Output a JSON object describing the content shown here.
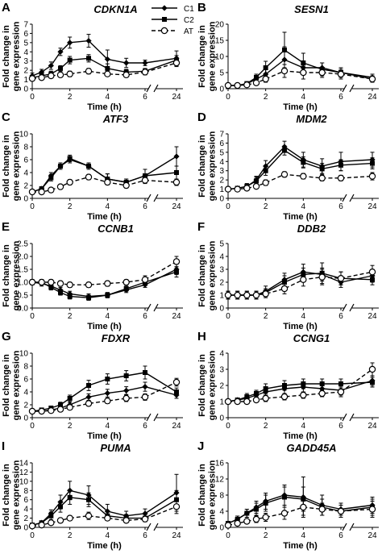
{
  "legend": [
    {
      "name": "C1",
      "marker": "diamond",
      "dash": "solid"
    },
    {
      "name": "C2",
      "marker": "square",
      "dash": "solid"
    },
    {
      "name": "AT",
      "marker": "circle-open",
      "dash": "dashed"
    }
  ],
  "chart_data": [
    {
      "type": "line",
      "panel": "A",
      "title": "CDKN1A",
      "xlabel": "Time (h)",
      "ylabel": "Fold change in gene expression",
      "x": [
        0,
        0.5,
        1,
        1.5,
        2,
        3,
        4,
        5,
        6,
        24
      ],
      "xticks": [
        "0",
        "2",
        "4",
        "6",
        "24"
      ],
      "ylim": [
        0,
        7
      ],
      "yticks": [
        0,
        1,
        2,
        3,
        4,
        5,
        6,
        7
      ],
      "series": [
        {
          "name": "C1",
          "values": [
            1.4,
            1.8,
            2.5,
            4.0,
            5.0,
            5.2,
            3.2,
            2.8,
            2.8,
            3.3
          ],
          "errors": [
            0.3,
            0.3,
            0.4,
            0.4,
            0.6,
            0.7,
            1.0,
            0.5,
            0.3,
            0.8
          ]
        },
        {
          "name": "C2",
          "values": [
            1.2,
            1.4,
            1.6,
            2.2,
            3.1,
            3.3,
            2.2,
            1.8,
            1.9,
            3.1
          ],
          "errors": [
            0.2,
            0.2,
            0.3,
            0.3,
            0.4,
            0.4,
            0.5,
            0.3,
            0.3,
            0.5
          ]
        },
        {
          "name": "AT",
          "values": [
            1.1,
            1.2,
            1.4,
            1.5,
            1.6,
            1.9,
            1.6,
            1.5,
            1.8,
            2.8
          ],
          "errors": [
            0.2,
            0.2,
            0.2,
            0.2,
            0.3,
            0.3,
            0.2,
            0.2,
            0.3,
            0.4
          ]
        }
      ]
    },
    {
      "type": "line",
      "panel": "B",
      "title": "SESN1",
      "xlabel": "Time (h)",
      "ylabel": "Fold change in gene expression",
      "x": [
        0,
        0.5,
        1,
        1.5,
        2,
        3,
        4,
        5,
        6,
        24
      ],
      "xticks": [
        "0",
        "2",
        "4",
        "6",
        "24"
      ],
      "ylim": [
        0,
        20
      ],
      "yticks": [
        0,
        5,
        10,
        15,
        20
      ],
      "series": [
        {
          "name": "C1",
          "values": [
            1.0,
            1.0,
            1.5,
            3.0,
            4.5,
            9.0,
            6.5,
            6.5,
            5.0,
            3.5
          ],
          "errors": [
            0.2,
            0.2,
            0.5,
            1.0,
            1.5,
            4.0,
            2.0,
            1.5,
            1.5,
            1.0
          ]
        },
        {
          "name": "C2",
          "values": [
            1.0,
            1.0,
            1.6,
            3.5,
            6.5,
            12.0,
            8.0,
            6.0,
            5.0,
            3.0
          ],
          "errors": [
            0.2,
            0.2,
            0.5,
            1.0,
            2.0,
            5.5,
            3.0,
            2.0,
            1.5,
            1.0
          ]
        },
        {
          "name": "AT",
          "values": [
            1.0,
            1.0,
            1.2,
            1.8,
            3.0,
            5.5,
            5.0,
            5.0,
            4.5,
            3.0
          ],
          "errors": [
            0.2,
            0.2,
            0.3,
            0.5,
            1.0,
            2.0,
            2.0,
            1.5,
            1.5,
            0.8
          ]
        }
      ]
    },
    {
      "type": "line",
      "panel": "C",
      "title": "ATF3",
      "xlabel": "Time (h)",
      "ylabel": "Fold change in gene expression",
      "x": [
        0,
        0.5,
        1,
        1.5,
        2,
        3,
        4,
        5,
        6,
        24
      ],
      "xticks": [
        "0",
        "2",
        "4",
        "6",
        "24"
      ],
      "ylim": [
        0,
        10
      ],
      "yticks": [
        0,
        2,
        4,
        6,
        8,
        10
      ],
      "series": [
        {
          "name": "C1",
          "values": [
            1.0,
            1.5,
            3.5,
            5.0,
            6.0,
            5.0,
            3.0,
            2.5,
            3.5,
            6.5
          ],
          "errors": [
            0.2,
            0.3,
            0.5,
            0.5,
            0.5,
            0.5,
            0.8,
            0.5,
            1.0,
            1.5
          ]
        },
        {
          "name": "C2",
          "values": [
            1.0,
            1.5,
            3.2,
            5.0,
            6.2,
            5.0,
            3.0,
            2.5,
            3.5,
            4.0
          ],
          "errors": [
            0.2,
            0.3,
            0.5,
            0.5,
            0.5,
            0.5,
            0.8,
            0.5,
            1.0,
            1.0
          ]
        },
        {
          "name": "AT",
          "values": [
            1.0,
            1.0,
            1.3,
            1.8,
            2.5,
            3.3,
            2.5,
            2.0,
            2.8,
            2.5
          ],
          "errors": [
            0.2,
            0.2,
            0.3,
            0.3,
            0.4,
            0.4,
            0.4,
            0.4,
            0.5,
            0.5
          ]
        }
      ]
    },
    {
      "type": "line",
      "panel": "D",
      "title": "MDM2",
      "xlabel": "Time (h)",
      "ylabel": "Fold change in gene expression",
      "x": [
        0,
        0.5,
        1,
        1.5,
        2,
        3,
        4,
        5,
        6,
        24
      ],
      "xticks": [
        "0",
        "2",
        "4",
        "6",
        "24"
      ],
      "ylim": [
        0,
        7
      ],
      "yticks": [
        0,
        1,
        2,
        3,
        4,
        5,
        6,
        7
      ],
      "series": [
        {
          "name": "C1",
          "values": [
            1.0,
            1.1,
            1.3,
            2.0,
            3.5,
            5.6,
            4.2,
            3.5,
            4.0,
            4.2
          ],
          "errors": [
            0.1,
            0.2,
            0.3,
            0.4,
            0.6,
            0.6,
            0.8,
            0.8,
            1.0,
            0.8
          ]
        },
        {
          "name": "C2",
          "values": [
            1.0,
            1.1,
            1.3,
            1.9,
            3.0,
            5.2,
            3.9,
            3.2,
            3.6,
            3.8
          ],
          "errors": [
            0.1,
            0.2,
            0.3,
            0.4,
            0.5,
            0.5,
            0.6,
            0.6,
            0.6,
            0.6
          ]
        },
        {
          "name": "AT",
          "values": [
            1.0,
            1.0,
            1.1,
            1.3,
            1.7,
            2.6,
            2.4,
            2.2,
            2.2,
            2.4
          ],
          "errors": [
            0.1,
            0.1,
            0.2,
            0.2,
            0.3,
            0.3,
            0.3,
            0.3,
            0.3,
            0.4
          ]
        }
      ]
    },
    {
      "type": "line",
      "panel": "E",
      "title": "CCNB1",
      "xlabel": "Time (h)",
      "ylabel": "Fold change in gene expression",
      "x": [
        0,
        0.5,
        1,
        1.5,
        2,
        3,
        4,
        5,
        6,
        24
      ],
      "xticks": [
        "0",
        "2",
        "4",
        "6",
        "24"
      ],
      "ylim": [
        0,
        2.5
      ],
      "yticks": [
        0,
        0.5,
        1.0,
        1.5,
        2.0,
        2.5
      ],
      "series": [
        {
          "name": "C1",
          "values": [
            1.0,
            0.95,
            0.85,
            0.7,
            0.55,
            0.45,
            0.5,
            0.7,
            0.9,
            1.5
          ],
          "errors": [
            0.1,
            0.1,
            0.1,
            0.1,
            0.1,
            0.1,
            0.1,
            0.1,
            0.1,
            0.2
          ]
        },
        {
          "name": "C2",
          "values": [
            1.0,
            1.0,
            0.8,
            0.6,
            0.45,
            0.4,
            0.5,
            0.75,
            1.0,
            1.4
          ],
          "errors": [
            0.1,
            0.1,
            0.1,
            0.1,
            0.1,
            0.1,
            0.1,
            0.1,
            0.1,
            0.2
          ]
        },
        {
          "name": "AT",
          "values": [
            1.0,
            1.0,
            1.0,
            0.95,
            0.9,
            0.9,
            0.95,
            1.0,
            1.1,
            1.8
          ],
          "errors": [
            0.1,
            0.1,
            0.1,
            0.1,
            0.1,
            0.1,
            0.1,
            0.1,
            0.15,
            0.2
          ]
        }
      ]
    },
    {
      "type": "line",
      "panel": "F",
      "title": "DDB2",
      "xlabel": "Time (h)",
      "ylabel": "Fold change in gene expression",
      "x": [
        0,
        0.5,
        1,
        1.5,
        2,
        3,
        4,
        5,
        6,
        24
      ],
      "xticks": [
        "0",
        "2",
        "4",
        "6",
        "24"
      ],
      "ylim": [
        0,
        5
      ],
      "yticks": [
        0,
        1,
        2,
        3,
        4,
        5
      ],
      "series": [
        {
          "name": "C1",
          "values": [
            1.0,
            1.0,
            1.0,
            1.0,
            1.3,
            2.2,
            2.8,
            2.6,
            2.0,
            2.5
          ],
          "errors": [
            0.3,
            0.3,
            0.3,
            0.3,
            0.4,
            0.5,
            0.6,
            0.5,
            0.4,
            0.5
          ]
        },
        {
          "name": "C2",
          "values": [
            1.0,
            1.0,
            1.0,
            1.0,
            1.2,
            2.0,
            2.6,
            2.7,
            2.3,
            2.2
          ],
          "errors": [
            0.3,
            0.3,
            0.3,
            0.3,
            0.3,
            0.5,
            0.5,
            0.8,
            0.5,
            0.4
          ]
        },
        {
          "name": "AT",
          "values": [
            1.0,
            1.0,
            1.0,
            1.0,
            1.1,
            1.5,
            2.2,
            2.4,
            2.3,
            2.8
          ],
          "errors": [
            0.3,
            0.3,
            0.3,
            0.3,
            0.3,
            0.4,
            0.5,
            0.6,
            0.5,
            0.5
          ]
        }
      ]
    },
    {
      "type": "line",
      "panel": "G",
      "title": "FDXR",
      "xlabel": "Time (h)",
      "ylabel": "Fold change in gene expression",
      "x": [
        0,
        0.5,
        1,
        1.5,
        2,
        3,
        4,
        5,
        6,
        24
      ],
      "xticks": [
        "0",
        "2",
        "4",
        "6",
        "24"
      ],
      "ylim": [
        0,
        10
      ],
      "yticks": [
        0,
        2,
        4,
        6,
        8,
        10
      ],
      "series": [
        {
          "name": "C1",
          "values": [
            1.0,
            1.0,
            1.2,
            1.5,
            2.0,
            3.2,
            3.8,
            4.2,
            4.8,
            3.5
          ],
          "errors": [
            0.2,
            0.2,
            0.3,
            0.3,
            0.4,
            0.5,
            0.6,
            0.6,
            0.7,
            0.5
          ]
        },
        {
          "name": "C2",
          "values": [
            1.0,
            1.2,
            1.5,
            2.0,
            3.0,
            5.0,
            6.0,
            6.5,
            7.0,
            4.0
          ],
          "errors": [
            0.2,
            0.3,
            0.3,
            0.4,
            0.5,
            0.8,
            0.8,
            0.8,
            1.0,
            0.6
          ]
        },
        {
          "name": "AT",
          "values": [
            1.0,
            1.0,
            1.1,
            1.3,
            1.6,
            2.2,
            2.6,
            3.0,
            3.2,
            5.5
          ],
          "errors": [
            0.2,
            0.2,
            0.2,
            0.3,
            0.3,
            0.4,
            0.4,
            0.5,
            0.5,
            0.6
          ]
        }
      ]
    },
    {
      "type": "line",
      "panel": "H",
      "title": "CCNG1",
      "xlabel": "Time (h)",
      "ylabel": "Fold change in gene expression",
      "x": [
        0,
        0.5,
        1,
        1.5,
        2,
        3,
        4,
        5,
        6,
        24
      ],
      "xticks": [
        "0",
        "2",
        "4",
        "6",
        "24"
      ],
      "ylim": [
        0,
        4
      ],
      "yticks": [
        0,
        1,
        2,
        3,
        4
      ],
      "series": [
        {
          "name": "C1",
          "values": [
            1.0,
            1.1,
            1.2,
            1.4,
            1.6,
            1.8,
            1.9,
            1.8,
            1.7,
            2.3
          ],
          "errors": [
            0.1,
            0.1,
            0.2,
            0.2,
            0.2,
            0.3,
            0.3,
            0.3,
            0.3,
            0.3
          ]
        },
        {
          "name": "C2",
          "values": [
            1.0,
            1.1,
            1.3,
            1.5,
            1.8,
            2.0,
            2.1,
            2.1,
            2.1,
            2.2
          ],
          "errors": [
            0.1,
            0.1,
            0.2,
            0.2,
            0.3,
            0.3,
            0.3,
            0.3,
            0.3,
            0.3
          ]
        },
        {
          "name": "AT",
          "values": [
            1.0,
            1.0,
            1.0,
            1.1,
            1.2,
            1.3,
            1.4,
            1.5,
            1.6,
            3.0
          ],
          "errors": [
            0.1,
            0.1,
            0.1,
            0.1,
            0.2,
            0.2,
            0.2,
            0.2,
            0.3,
            0.4
          ]
        }
      ]
    },
    {
      "type": "line",
      "panel": "I",
      "title": "PUMA",
      "xlabel": "Time (h)",
      "ylabel": "Fold change in gene expression",
      "x": [
        0,
        0.5,
        1,
        1.5,
        2,
        3,
        4,
        5,
        6,
        24
      ],
      "xticks": [
        "0",
        "2",
        "4",
        "6",
        "24"
      ],
      "ylim": [
        0,
        14
      ],
      "yticks": [
        0,
        2,
        4,
        6,
        8,
        10,
        12,
        14
      ],
      "series": [
        {
          "name": "C1",
          "values": [
            0.5,
            1.0,
            3.0,
            5.5,
            8.0,
            7.0,
            3.5,
            2.5,
            3.0,
            7.5
          ],
          "errors": [
            0.2,
            0.3,
            0.8,
            1.5,
            2.0,
            2.0,
            1.5,
            1.0,
            1.0,
            4.0
          ]
        },
        {
          "name": "C2",
          "values": [
            0.5,
            1.0,
            2.5,
            4.5,
            6.5,
            6.0,
            2.5,
            2.0,
            2.0,
            6.0
          ],
          "errors": [
            0.2,
            0.3,
            0.8,
            1.2,
            1.5,
            1.5,
            1.0,
            0.8,
            0.8,
            2.0
          ]
        },
        {
          "name": "AT",
          "values": [
            0.3,
            0.5,
            1.0,
            1.5,
            2.0,
            2.5,
            2.0,
            1.5,
            1.8,
            4.5
          ],
          "errors": [
            0.2,
            0.2,
            0.3,
            0.5,
            0.5,
            0.8,
            0.5,
            0.5,
            0.5,
            1.5
          ]
        }
      ]
    },
    {
      "type": "line",
      "panel": "J",
      "title": "GADD45A",
      "xlabel": "Time (h)",
      "ylabel": "Fold change in gene expression",
      "x": [
        0,
        0.5,
        1,
        1.5,
        2,
        3,
        4,
        5,
        6,
        24
      ],
      "xticks": [
        "0",
        "2",
        "4",
        "6",
        "24"
      ],
      "ylim": [
        0,
        16
      ],
      "yticks": [
        0,
        4,
        8,
        12,
        16
      ],
      "series": [
        {
          "name": "C1",
          "values": [
            1.0,
            2.0,
            3.5,
            5.0,
            6.5,
            8.0,
            7.5,
            5.5,
            4.5,
            5.5
          ],
          "errors": [
            0.5,
            0.8,
            1.0,
            1.5,
            2.0,
            2.5,
            5.0,
            2.5,
            1.5,
            2.0
          ]
        },
        {
          "name": "C2",
          "values": [
            1.0,
            2.0,
            3.5,
            4.5,
            6.0,
            7.5,
            7.0,
            5.0,
            4.0,
            5.0
          ],
          "errors": [
            0.5,
            0.8,
            1.0,
            1.5,
            2.0,
            2.5,
            3.0,
            2.0,
            1.5,
            2.0
          ]
        },
        {
          "name": "AT",
          "values": [
            0.5,
            1.0,
            1.5,
            2.0,
            2.5,
            3.5,
            5.0,
            4.5,
            4.0,
            4.5
          ],
          "errors": [
            0.3,
            0.5,
            0.5,
            0.8,
            1.0,
            1.5,
            2.0,
            1.5,
            1.5,
            2.0
          ]
        }
      ]
    }
  ]
}
